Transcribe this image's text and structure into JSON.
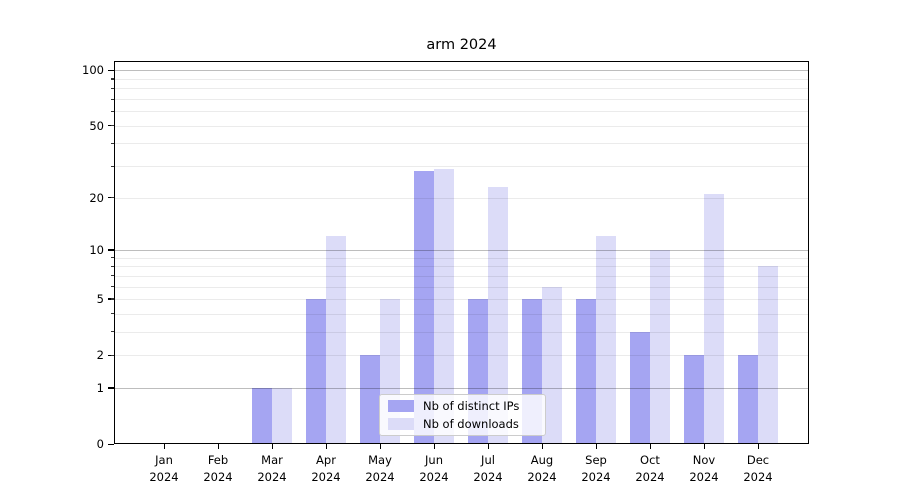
{
  "chart_data": {
    "type": "bar",
    "title": "arm 2024",
    "categories": [
      "Jan 2024",
      "Feb 2024",
      "Mar 2024",
      "Apr 2024",
      "May 2024",
      "Jun 2024",
      "Jul 2024",
      "Aug 2024",
      "Sep 2024",
      "Oct 2024",
      "Nov 2024",
      "Dec 2024"
    ],
    "series": [
      {
        "name": "Nb of distinct IPs",
        "color": "#a5a5f2",
        "values": [
          0,
          0,
          1,
          5,
          2,
          28,
          5,
          5,
          5,
          3,
          2,
          2
        ]
      },
      {
        "name": "Nb of downloads",
        "color": "#dcdcf8",
        "values": [
          0,
          0,
          1,
          12,
          5,
          29,
          23,
          6,
          12,
          10,
          21,
          8
        ]
      }
    ],
    "xlabel": "",
    "ylabel": "",
    "yscale": "log1p",
    "ylim": [
      0,
      113
    ],
    "yticks": [
      0,
      1,
      2,
      5,
      10,
      20,
      50,
      100
    ],
    "major_gridlines": [
      1,
      10,
      100
    ],
    "minor_gridlines": [
      2,
      3,
      4,
      5,
      6,
      7,
      8,
      9,
      20,
      30,
      40,
      50,
      60,
      70,
      80,
      90
    ],
    "grid": "on",
    "legend_position": "lower center",
    "colors": {
      "distinct_ips_bar": "#a5a5f2",
      "downloads_bar": "#dcdcf8",
      "grid_major": "#bdbdbd",
      "grid_minor": "#ebebeb",
      "spine": "#000000",
      "background": "#ffffff"
    }
  }
}
